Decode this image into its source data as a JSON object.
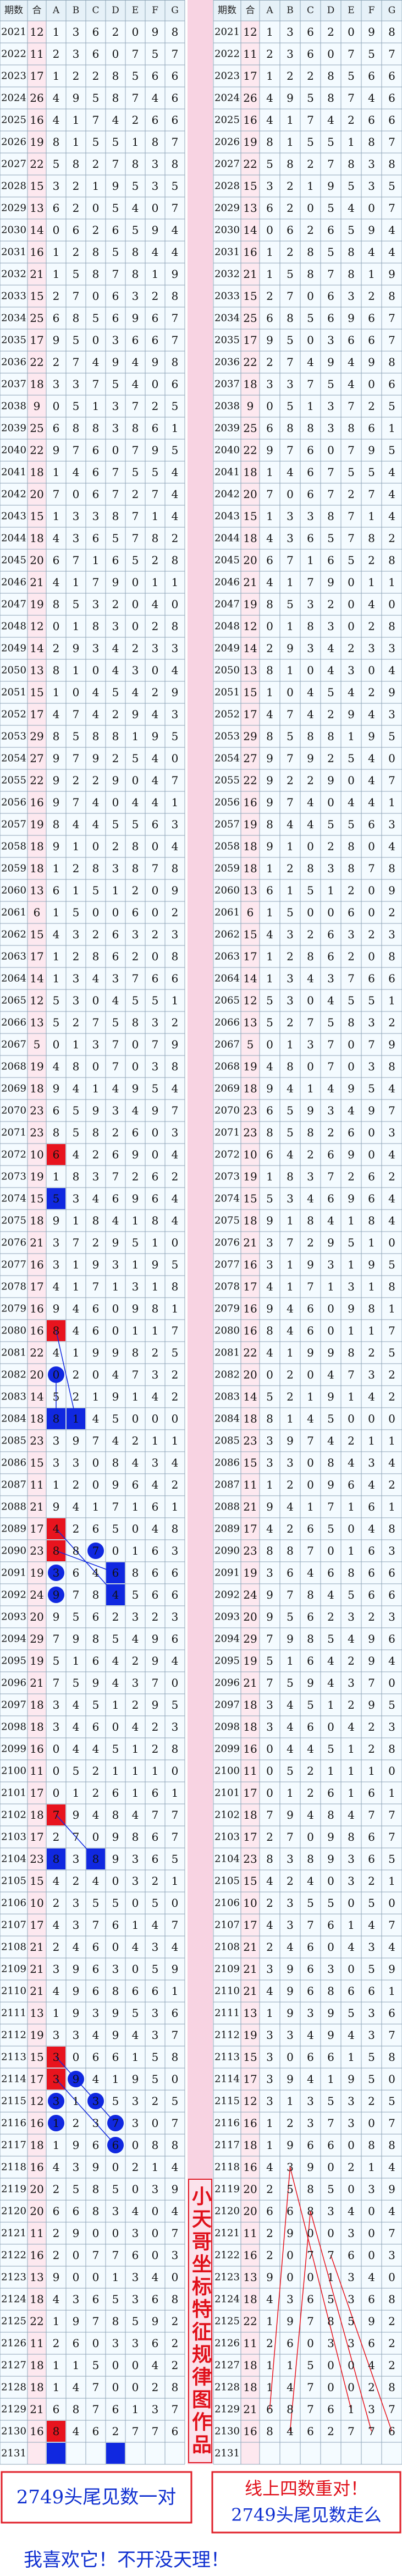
{
  "header": [
    "期数",
    "合",
    "A",
    "B",
    "C",
    "D",
    "E",
    "F",
    "G"
  ],
  "rows": [
    {
      "period": 2021,
      "values": [
        12,
        1,
        3,
        6,
        2,
        0,
        9,
        8
      ]
    },
    {
      "period": 2022,
      "values": [
        11,
        2,
        3,
        6,
        0,
        7,
        5,
        7
      ]
    },
    {
      "period": 2023,
      "values": [
        17,
        1,
        2,
        2,
        8,
        5,
        6,
        6
      ]
    },
    {
      "period": 2024,
      "values": [
        26,
        4,
        9,
        5,
        8,
        7,
        4,
        6
      ]
    },
    {
      "period": 2025,
      "values": [
        16,
        4,
        1,
        7,
        4,
        2,
        6,
        6
      ]
    },
    {
      "period": 2026,
      "values": [
        19,
        8,
        1,
        5,
        5,
        1,
        8,
        7
      ]
    },
    {
      "period": 2027,
      "values": [
        22,
        5,
        8,
        2,
        7,
        8,
        3,
        8
      ]
    },
    {
      "period": 2028,
      "values": [
        15,
        3,
        2,
        1,
        9,
        5,
        3,
        5
      ]
    },
    {
      "period": 2029,
      "values": [
        13,
        6,
        2,
        0,
        5,
        4,
        0,
        7
      ]
    },
    {
      "period": 2030,
      "values": [
        14,
        0,
        6,
        2,
        6,
        5,
        9,
        4
      ]
    },
    {
      "period": 2031,
      "values": [
        16,
        1,
        2,
        8,
        5,
        8,
        4,
        4
      ]
    },
    {
      "period": 2032,
      "values": [
        21,
        1,
        5,
        8,
        7,
        8,
        1,
        9
      ]
    },
    {
      "period": 2033,
      "values": [
        15,
        2,
        7,
        0,
        6,
        3,
        2,
        8
      ]
    },
    {
      "period": 2034,
      "values": [
        25,
        6,
        8,
        5,
        6,
        9,
        6,
        7
      ]
    },
    {
      "period": 2035,
      "values": [
        17,
        9,
        5,
        0,
        3,
        6,
        6,
        7
      ]
    },
    {
      "period": 2036,
      "values": [
        22,
        2,
        7,
        4,
        9,
        4,
        9,
        8
      ]
    },
    {
      "period": 2037,
      "values": [
        18,
        3,
        3,
        7,
        5,
        4,
        0,
        6
      ]
    },
    {
      "period": 2038,
      "values": [
        9,
        0,
        5,
        1,
        3,
        7,
        2,
        5
      ]
    },
    {
      "period": 2039,
      "values": [
        25,
        6,
        8,
        8,
        3,
        8,
        6,
        1
      ]
    },
    {
      "period": 2040,
      "values": [
        22,
        9,
        7,
        6,
        0,
        7,
        9,
        5
      ]
    },
    {
      "period": 2041,
      "values": [
        18,
        1,
        4,
        6,
        7,
        5,
        5,
        4
      ]
    },
    {
      "period": 2042,
      "values": [
        20,
        7,
        0,
        6,
        7,
        2,
        7,
        4
      ]
    },
    {
      "period": 2043,
      "values": [
        15,
        1,
        3,
        3,
        8,
        7,
        1,
        4
      ]
    },
    {
      "period": 2044,
      "values": [
        18,
        4,
        3,
        6,
        5,
        7,
        8,
        2
      ]
    },
    {
      "period": 2045,
      "values": [
        20,
        6,
        7,
        1,
        6,
        5,
        2,
        8
      ]
    },
    {
      "period": 2046,
      "values": [
        21,
        4,
        1,
        7,
        9,
        0,
        1,
        1
      ]
    },
    {
      "period": 2047,
      "values": [
        19,
        8,
        5,
        3,
        2,
        0,
        4,
        0
      ]
    },
    {
      "period": 2048,
      "values": [
        12,
        0,
        1,
        8,
        3,
        0,
        2,
        8
      ]
    },
    {
      "period": 2049,
      "values": [
        14,
        2,
        9,
        3,
        4,
        2,
        3,
        3
      ]
    },
    {
      "period": 2050,
      "values": [
        13,
        8,
        1,
        0,
        4,
        3,
        0,
        4
      ]
    },
    {
      "period": 2051,
      "values": [
        15,
        1,
        0,
        4,
        5,
        4,
        2,
        9
      ]
    },
    {
      "period": 2052,
      "values": [
        17,
        4,
        7,
        4,
        2,
        9,
        4,
        3
      ]
    },
    {
      "period": 2053,
      "values": [
        29,
        8,
        5,
        8,
        8,
        1,
        9,
        5
      ]
    },
    {
      "period": 2054,
      "values": [
        27,
        9,
        7,
        9,
        2,
        5,
        4,
        0
      ]
    },
    {
      "period": 2055,
      "values": [
        22,
        9,
        2,
        2,
        9,
        0,
        4,
        7
      ]
    },
    {
      "period": 2056,
      "values": [
        16,
        9,
        7,
        4,
        0,
        4,
        4,
        1
      ]
    },
    {
      "period": 2057,
      "values": [
        19,
        8,
        4,
        4,
        5,
        5,
        6,
        3
      ]
    },
    {
      "period": 2058,
      "values": [
        18,
        9,
        1,
        0,
        2,
        8,
        0,
        4
      ]
    },
    {
      "period": 2059,
      "values": [
        18,
        1,
        2,
        8,
        3,
        8,
        7,
        8
      ]
    },
    {
      "period": 2060,
      "values": [
        13,
        6,
        1,
        5,
        1,
        2,
        0,
        9
      ]
    },
    {
      "period": 2061,
      "values": [
        6,
        1,
        5,
        0,
        0,
        6,
        0,
        2
      ]
    },
    {
      "period": 2062,
      "values": [
        15,
        4,
        3,
        2,
        6,
        3,
        2,
        3
      ]
    },
    {
      "period": 2063,
      "values": [
        17,
        1,
        2,
        8,
        6,
        2,
        0,
        8
      ]
    },
    {
      "period": 2064,
      "values": [
        14,
        1,
        3,
        4,
        3,
        7,
        6,
        6
      ]
    },
    {
      "period": 2065,
      "values": [
        12,
        5,
        3,
        0,
        4,
        5,
        5,
        1
      ]
    },
    {
      "period": 2066,
      "values": [
        13,
        5,
        2,
        7,
        5,
        8,
        3,
        2
      ]
    },
    {
      "period": 2067,
      "values": [
        5,
        0,
        1,
        3,
        7,
        0,
        7,
        9
      ]
    },
    {
      "period": 2068,
      "values": [
        19,
        4,
        8,
        0,
        7,
        0,
        3,
        8
      ]
    },
    {
      "period": 2069,
      "values": [
        18,
        9,
        4,
        1,
        4,
        9,
        5,
        4
      ]
    },
    {
      "period": 2070,
      "values": [
        23,
        6,
        5,
        9,
        3,
        4,
        9,
        7
      ]
    },
    {
      "period": 2071,
      "values": [
        23,
        8,
        5,
        8,
        2,
        6,
        0,
        3
      ]
    },
    {
      "period": 2072,
      "values": [
        10,
        6,
        4,
        2,
        6,
        9,
        0,
        4
      ]
    },
    {
      "period": 2073,
      "values": [
        19,
        1,
        8,
        3,
        7,
        2,
        6,
        2
      ]
    },
    {
      "period": 2074,
      "values": [
        15,
        5,
        3,
        4,
        6,
        9,
        6,
        4
      ]
    },
    {
      "period": 2075,
      "values": [
        18,
        9,
        1,
        8,
        4,
        1,
        8,
        4
      ]
    },
    {
      "period": 2076,
      "values": [
        21,
        3,
        7,
        2,
        9,
        5,
        1,
        0
      ]
    },
    {
      "period": 2077,
      "values": [
        16,
        3,
        1,
        9,
        3,
        1,
        9,
        5
      ]
    },
    {
      "period": 2078,
      "values": [
        17,
        4,
        1,
        7,
        1,
        3,
        1,
        8
      ]
    },
    {
      "period": 2079,
      "values": [
        16,
        9,
        4,
        6,
        0,
        9,
        8,
        1
      ]
    },
    {
      "period": 2080,
      "values": [
        16,
        8,
        4,
        6,
        0,
        1,
        1,
        7
      ]
    },
    {
      "period": 2081,
      "values": [
        22,
        4,
        1,
        9,
        9,
        8,
        2,
        5
      ]
    },
    {
      "period": 2082,
      "values": [
        20,
        0,
        2,
        0,
        4,
        7,
        3,
        2
      ]
    },
    {
      "period": 2083,
      "values": [
        14,
        5,
        2,
        1,
        9,
        1,
        4,
        2
      ]
    },
    {
      "period": 2084,
      "values": [
        18,
        8,
        1,
        4,
        5,
        0,
        0,
        0
      ]
    },
    {
      "period": 2085,
      "values": [
        23,
        3,
        9,
        7,
        4,
        2,
        1,
        1
      ]
    },
    {
      "period": 2086,
      "values": [
        15,
        3,
        3,
        0,
        8,
        4,
        3,
        4
      ]
    },
    {
      "period": 2087,
      "values": [
        11,
        1,
        2,
        0,
        9,
        6,
        4,
        2
      ]
    },
    {
      "period": 2088,
      "values": [
        21,
        9,
        4,
        1,
        7,
        1,
        6,
        1
      ]
    },
    {
      "period": 2089,
      "values": [
        17,
        4,
        2,
        6,
        5,
        0,
        4,
        8
      ]
    },
    {
      "period": 2090,
      "values": [
        23,
        8,
        8,
        7,
        0,
        1,
        6,
        3
      ]
    },
    {
      "period": 2091,
      "values": [
        19,
        3,
        6,
        4,
        6,
        8,
        6,
        6
      ]
    },
    {
      "period": 2092,
      "values": [
        24,
        9,
        7,
        8,
        4,
        5,
        6,
        6
      ]
    },
    {
      "period": 2093,
      "values": [
        20,
        9,
        5,
        6,
        2,
        3,
        2,
        3
      ]
    },
    {
      "period": 2094,
      "values": [
        29,
        7,
        9,
        8,
        5,
        4,
        9,
        6
      ]
    },
    {
      "period": 2095,
      "values": [
        19,
        5,
        1,
        6,
        4,
        2,
        9,
        4
      ]
    },
    {
      "period": 2096,
      "values": [
        21,
        7,
        5,
        9,
        4,
        3,
        7,
        0
      ]
    },
    {
      "period": 2097,
      "values": [
        18,
        3,
        4,
        5,
        1,
        2,
        9,
        5
      ]
    },
    {
      "period": 2098,
      "values": [
        18,
        3,
        4,
        6,
        0,
        4,
        2,
        3
      ]
    },
    {
      "period": 2099,
      "values": [
        16,
        0,
        4,
        4,
        5,
        1,
        2,
        8
      ]
    },
    {
      "period": 2100,
      "values": [
        11,
        0,
        5,
        2,
        1,
        1,
        1,
        0
      ]
    },
    {
      "period": 2101,
      "values": [
        17,
        0,
        1,
        2,
        6,
        1,
        6,
        1
      ]
    },
    {
      "period": 2102,
      "values": [
        18,
        7,
        9,
        4,
        8,
        4,
        7,
        7
      ]
    },
    {
      "period": 2103,
      "values": [
        17,
        2,
        7,
        0,
        9,
        8,
        6,
        7
      ]
    },
    {
      "period": 2104,
      "values": [
        23,
        8,
        3,
        8,
        9,
        3,
        6,
        5
      ]
    },
    {
      "period": 2105,
      "values": [
        15,
        4,
        2,
        4,
        0,
        3,
        2,
        1
      ]
    },
    {
      "period": 2106,
      "values": [
        10,
        2,
        3,
        5,
        5,
        0,
        5,
        0
      ]
    },
    {
      "period": 2107,
      "values": [
        17,
        4,
        3,
        7,
        6,
        1,
        4,
        7
      ]
    },
    {
      "period": 2108,
      "values": [
        21,
        2,
        4,
        6,
        0,
        4,
        3,
        4
      ]
    },
    {
      "period": 2109,
      "values": [
        21,
        3,
        9,
        6,
        3,
        0,
        5,
        9
      ]
    },
    {
      "period": 2110,
      "values": [
        21,
        4,
        9,
        6,
        8,
        6,
        6,
        1
      ]
    },
    {
      "period": 2111,
      "values": [
        13,
        1,
        9,
        3,
        9,
        5,
        3,
        6
      ]
    },
    {
      "period": 2112,
      "values": [
        19,
        3,
        3,
        4,
        9,
        4,
        3,
        7
      ]
    },
    {
      "period": 2113,
      "values": [
        15,
        3,
        0,
        6,
        6,
        1,
        5,
        8
      ]
    },
    {
      "period": 2114,
      "values": [
        17,
        3,
        9,
        4,
        1,
        9,
        5,
        0
      ]
    },
    {
      "period": 2115,
      "values": [
        12,
        3,
        1,
        3,
        5,
        3,
        2,
        5
      ]
    },
    {
      "period": 2116,
      "values": [
        16,
        1,
        2,
        3,
        7,
        3,
        0,
        7
      ]
    },
    {
      "period": 2117,
      "values": [
        18,
        1,
        9,
        6,
        6,
        0,
        8,
        8
      ]
    },
    {
      "period": 2118,
      "values": [
        16,
        4,
        3,
        9,
        0,
        2,
        1,
        4
      ]
    },
    {
      "period": 2119,
      "values": [
        20,
        2,
        5,
        8,
        5,
        0,
        3,
        9
      ]
    },
    {
      "period": 2120,
      "values": [
        20,
        6,
        6,
        8,
        3,
        4,
        0,
        4
      ]
    },
    {
      "period": 2121,
      "values": [
        11,
        2,
        9,
        0,
        0,
        3,
        0,
        7
      ]
    },
    {
      "period": 2122,
      "values": [
        16,
        2,
        0,
        7,
        7,
        6,
        0,
        3
      ]
    },
    {
      "period": 2123,
      "values": [
        13,
        9,
        0,
        0,
        1,
        3,
        4,
        0
      ]
    },
    {
      "period": 2124,
      "values": [
        18,
        4,
        3,
        6,
        5,
        3,
        6,
        8
      ]
    },
    {
      "period": 2125,
      "values": [
        22,
        1,
        9,
        7,
        8,
        5,
        9,
        2
      ]
    },
    {
      "period": 2126,
      "values": [
        11,
        2,
        6,
        0,
        3,
        3,
        6,
        2
      ]
    },
    {
      "period": 2127,
      "values": [
        18,
        1,
        1,
        5,
        0,
        0,
        4,
        2
      ]
    },
    {
      "period": 2128,
      "values": [
        18,
        1,
        4,
        7,
        0,
        0,
        2,
        8
      ]
    },
    {
      "period": 2129,
      "values": [
        21,
        6,
        8,
        7,
        6,
        1,
        3,
        7
      ]
    },
    {
      "period": 2130,
      "values": [
        16,
        8,
        4,
        6,
        2,
        7,
        7,
        6
      ]
    },
    {
      "period": 2131,
      "values": []
    }
  ],
  "side_text": "小天哥坐标特征规律图作品",
  "left_note": "2749头尾见数一对",
  "right_note": [
    "线上四数重对！",
    "2749头尾见数走么"
  ],
  "footer": "我喜欢它！不开没天理！"
}
